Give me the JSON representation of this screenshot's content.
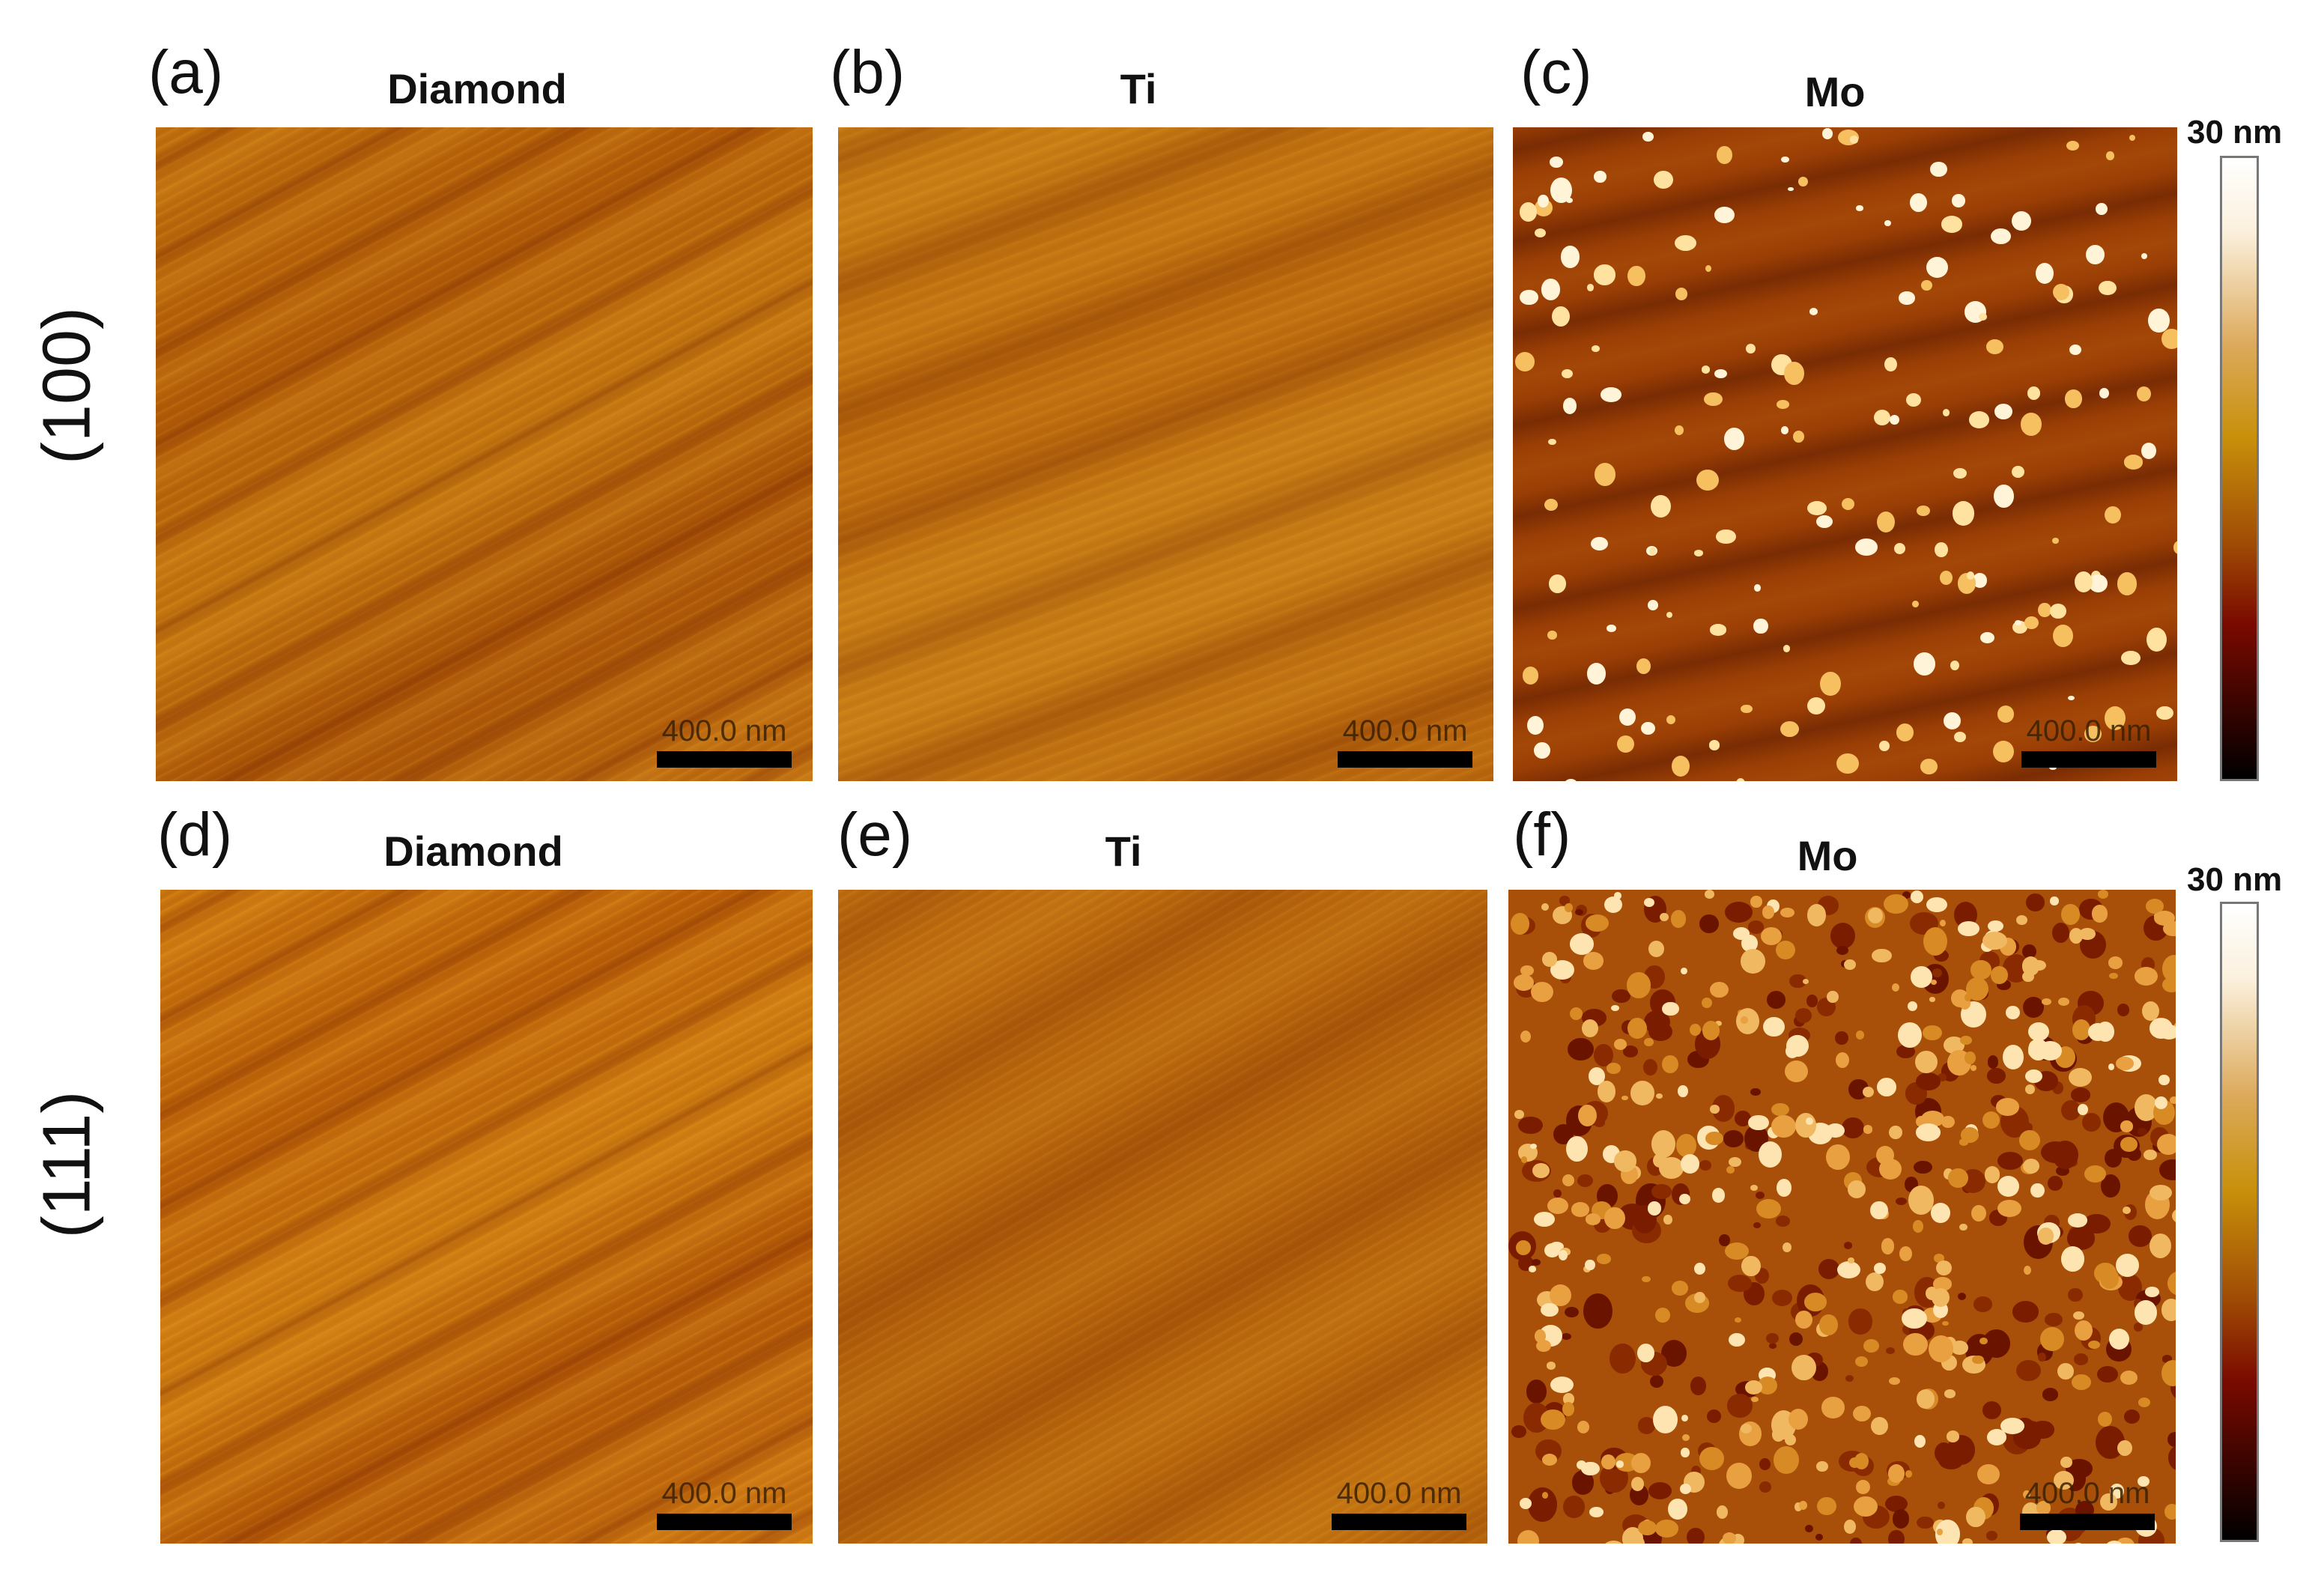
{
  "row_labels": [
    "(100)",
    "(111)"
  ],
  "panels": [
    {
      "label": "(a)",
      "title": "Diamond",
      "scale": "400.0 nm"
    },
    {
      "label": "(b)",
      "title": "Ti",
      "scale": "400.0 nm"
    },
    {
      "label": "(c)",
      "title": "Mo",
      "scale": "400.0 nm"
    },
    {
      "label": "(d)",
      "title": "Diamond",
      "scale": "400.0 nm"
    },
    {
      "label": "(e)",
      "title": "Ti",
      "scale": "400.0 nm"
    },
    {
      "label": "(f)",
      "title": "Mo",
      "scale": "400.0 nm"
    }
  ],
  "colorbars": [
    {
      "max_label": "30 nm"
    },
    {
      "max_label": "30 nm"
    }
  ],
  "colormap": [
    "#000000",
    "#7a0a00",
    "#a04c05",
    "#c8900a",
    "#dcaa5c",
    "#ffffff"
  ]
}
